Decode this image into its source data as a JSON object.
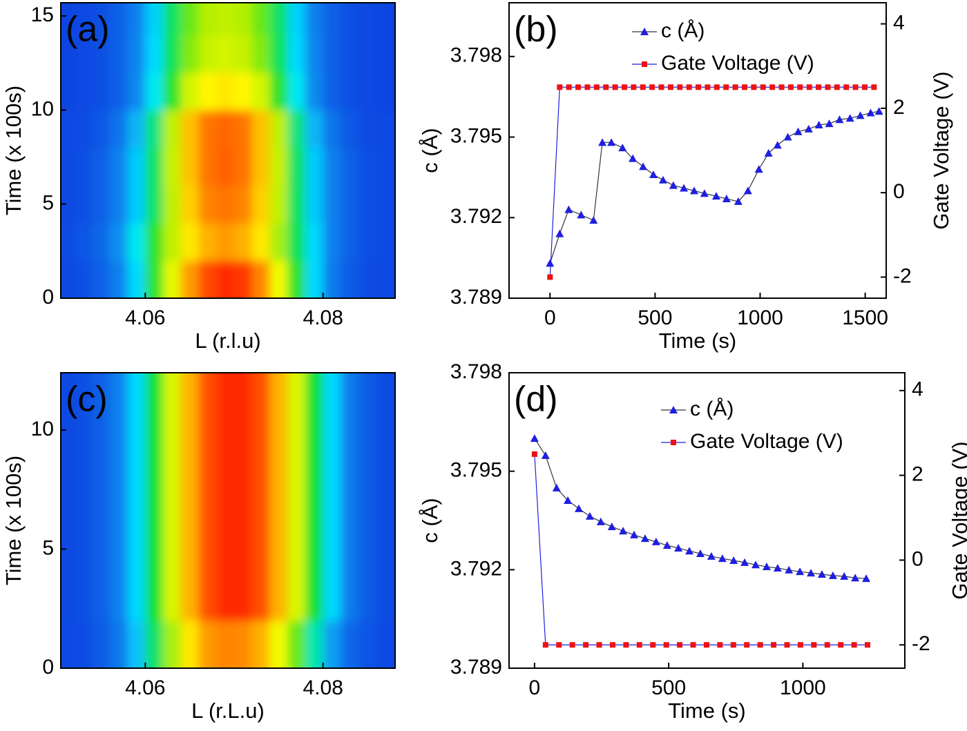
{
  "chart_data": [
    {
      "type": "heatmap",
      "panel_label": "(a)",
      "panel_label_color": "#ffffff",
      "xlabel": "L (r.l.u)",
      "ylabel": "Time (x 100s)",
      "xlim": [
        4.0505,
        4.0881
      ],
      "ylim": [
        0,
        15.7
      ],
      "xticks": [
        4.06,
        4.08
      ],
      "yticks": [
        0,
        5,
        10,
        15
      ],
      "x": [
        4.051,
        4.053,
        4.055,
        4.057,
        4.059,
        4.061,
        4.063,
        4.065,
        4.067,
        4.069,
        4.071,
        4.073,
        4.075,
        4.077,
        4.079,
        4.081,
        4.083,
        4.085,
        4.087
      ],
      "y": [
        1,
        3,
        5,
        7,
        9,
        11,
        13,
        15
      ],
      "z": [
        [
          0.02,
          0.04,
          0.08,
          0.16,
          0.3,
          0.5,
          0.68,
          0.85,
          0.96,
          1,
          0.98,
          0.88,
          0.7,
          0.5,
          0.3,
          0.15,
          0.07,
          0.03,
          0.02
        ],
        [
          0.03,
          0.05,
          0.1,
          0.2,
          0.33,
          0.5,
          0.62,
          0.75,
          0.82,
          0.85,
          0.82,
          0.75,
          0.6,
          0.45,
          0.3,
          0.16,
          0.08,
          0.04,
          0.02
        ],
        [
          0.02,
          0.04,
          0.08,
          0.16,
          0.28,
          0.44,
          0.62,
          0.78,
          0.88,
          0.9,
          0.88,
          0.78,
          0.62,
          0.44,
          0.28,
          0.16,
          0.08,
          0.04,
          0.02
        ],
        [
          0.02,
          0.04,
          0.08,
          0.16,
          0.28,
          0.44,
          0.63,
          0.8,
          0.9,
          0.93,
          0.9,
          0.8,
          0.63,
          0.44,
          0.28,
          0.16,
          0.08,
          0.04,
          0.02
        ],
        [
          0.02,
          0.03,
          0.06,
          0.13,
          0.25,
          0.42,
          0.62,
          0.8,
          0.9,
          0.92,
          0.9,
          0.8,
          0.62,
          0.42,
          0.25,
          0.13,
          0.06,
          0.03,
          0.02
        ],
        [
          0.01,
          0.02,
          0.04,
          0.08,
          0.18,
          0.33,
          0.5,
          0.65,
          0.73,
          0.75,
          0.73,
          0.65,
          0.5,
          0.33,
          0.18,
          0.08,
          0.04,
          0.02,
          0.01
        ],
        [
          0.01,
          0.02,
          0.04,
          0.08,
          0.17,
          0.3,
          0.45,
          0.57,
          0.63,
          0.65,
          0.63,
          0.57,
          0.45,
          0.3,
          0.17,
          0.08,
          0.04,
          0.02,
          0.01
        ],
        [
          0.01,
          0.02,
          0.04,
          0.08,
          0.16,
          0.29,
          0.44,
          0.55,
          0.61,
          0.62,
          0.61,
          0.55,
          0.44,
          0.29,
          0.16,
          0.08,
          0.04,
          0.02,
          0.01
        ]
      ]
    },
    {
      "type": "line",
      "panel_label": "(b)",
      "panel_label_color": "#000000",
      "xlabel": "Time (s)",
      "ylabel": "c (Å)",
      "y2label": "Gate Voltage (V)",
      "y2_color": "#ee1111",
      "xlim": [
        -195,
        1600
      ],
      "ylim": [
        3.789,
        3.8
      ],
      "y2lim": [
        -2.5,
        4.5
      ],
      "xticks": [
        0,
        500,
        1000,
        1500
      ],
      "yticks": [
        3.789,
        3.792,
        3.795,
        3.798
      ],
      "y2ticks": [
        -2,
        0,
        2,
        4
      ],
      "legend": "upper right",
      "series": [
        {
          "name": "c (Å)",
          "marker": "triangle",
          "color": "#1f1fe0",
          "line_color": "#333333",
          "text_color": "#000000",
          "x": [
            0,
            46,
            89,
            148,
            207,
            249,
            292,
            345,
            394,
            443,
            492,
            538,
            587,
            637,
            686,
            735,
            791,
            840,
            896,
            942,
            994,
            1040,
            1083,
            1132,
            1181,
            1231,
            1280,
            1329,
            1378,
            1428,
            1477,
            1526,
            1566
          ],
          "values": [
            3.7903,
            3.7914,
            3.7923,
            3.7921,
            3.7919,
            3.7948,
            3.7948,
            3.7946,
            3.7942,
            3.7939,
            3.7936,
            3.7934,
            3.7932,
            3.7931,
            3.793,
            3.7929,
            3.7928,
            3.7927,
            3.7926,
            3.793,
            3.7938,
            3.7944,
            3.7947,
            3.795,
            3.7952,
            3.7953,
            3.79545,
            3.7955,
            3.79565,
            3.7957,
            3.7958,
            3.7959,
            3.79596
          ]
        },
        {
          "name": "Gate Voltage (V)",
          "axis": "y2",
          "marker": "square",
          "color": "#ee1111",
          "line_color": "#1f1fe0",
          "text_color": "#ee1111",
          "x": [
            0,
            46,
            90,
            134,
            178,
            222,
            266,
            310,
            354,
            398,
            442,
            486,
            530,
            574,
            618,
            662,
            706,
            750,
            794,
            838,
            882,
            926,
            970,
            1014,
            1058,
            1102,
            1146,
            1190,
            1234,
            1278,
            1322,
            1366,
            1410,
            1454,
            1498,
            1542
          ],
          "values": [
            -2,
            2.5,
            2.5,
            2.5,
            2.5,
            2.5,
            2.5,
            2.5,
            2.5,
            2.5,
            2.5,
            2.5,
            2.5,
            2.5,
            2.5,
            2.5,
            2.5,
            2.5,
            2.5,
            2.5,
            2.5,
            2.5,
            2.5,
            2.5,
            2.5,
            2.5,
            2.5,
            2.5,
            2.5,
            2.5,
            2.5,
            2.5,
            2.5,
            2.5,
            2.5,
            2.5
          ]
        }
      ]
    },
    {
      "type": "heatmap",
      "panel_label": "(c)",
      "panel_label_color": "#ffffff",
      "xlabel": "L (r.L.u)",
      "ylabel": "Time (x 100s)",
      "xlim": [
        4.0505,
        4.0881
      ],
      "ylim": [
        0,
        12.4
      ],
      "xticks": [
        4.06,
        4.08
      ],
      "yticks": [
        0,
        5,
        10
      ],
      "x": [
        4.051,
        4.053,
        4.055,
        4.057,
        4.059,
        4.061,
        4.063,
        4.065,
        4.067,
        4.069,
        4.071,
        4.073,
        4.075,
        4.077,
        4.079,
        4.081,
        4.083,
        4.085,
        4.087
      ],
      "y": [
        1,
        3,
        5,
        7,
        9,
        11,
        13
      ],
      "z": [
        [
          0.02,
          0.03,
          0.07,
          0.14,
          0.27,
          0.44,
          0.6,
          0.75,
          0.85,
          0.88,
          0.87,
          0.82,
          0.7,
          0.55,
          0.38,
          0.22,
          0.1,
          0.05,
          0.02
        ],
        [
          0.02,
          0.04,
          0.08,
          0.16,
          0.3,
          0.48,
          0.66,
          0.82,
          0.95,
          1,
          1,
          0.95,
          0.82,
          0.66,
          0.48,
          0.3,
          0.15,
          0.07,
          0.03
        ],
        [
          0.02,
          0.04,
          0.08,
          0.16,
          0.3,
          0.48,
          0.66,
          0.82,
          0.95,
          1,
          1,
          0.95,
          0.82,
          0.66,
          0.48,
          0.3,
          0.15,
          0.07,
          0.03
        ],
        [
          0.02,
          0.04,
          0.08,
          0.16,
          0.3,
          0.48,
          0.66,
          0.82,
          0.95,
          1,
          1,
          0.95,
          0.82,
          0.66,
          0.48,
          0.3,
          0.15,
          0.07,
          0.03
        ],
        [
          0.02,
          0.04,
          0.08,
          0.16,
          0.3,
          0.48,
          0.66,
          0.82,
          0.95,
          1,
          1,
          0.95,
          0.82,
          0.66,
          0.48,
          0.3,
          0.15,
          0.07,
          0.03
        ],
        [
          0.02,
          0.04,
          0.08,
          0.16,
          0.3,
          0.48,
          0.66,
          0.82,
          0.95,
          1,
          1,
          0.95,
          0.82,
          0.66,
          0.48,
          0.3,
          0.15,
          0.07,
          0.03
        ],
        [
          0.02,
          0.04,
          0.08,
          0.16,
          0.3,
          0.48,
          0.66,
          0.82,
          0.95,
          1,
          1,
          0.95,
          0.82,
          0.66,
          0.48,
          0.3,
          0.15,
          0.07,
          0.03
        ]
      ]
    },
    {
      "type": "line",
      "panel_label": "(d)",
      "panel_label_color": "#000000",
      "xlabel": "Time (s)",
      "ylabel": "c (Å)",
      "y2label": "Gate Voltage (V)",
      "y2_color": "#ee1111",
      "xlim": [
        -95,
        1380
      ],
      "ylim": [
        3.789,
        3.798
      ],
      "y2lim": [
        -2.55,
        4.42
      ],
      "xticks": [
        0,
        500,
        1000
      ],
      "yticks": [
        3.789,
        3.792,
        3.795,
        3.798
      ],
      "y2ticks": [
        -2,
        0,
        2,
        4
      ],
      "legend": "right",
      "series": [
        {
          "name": "c (Å)",
          "marker": "triangle",
          "color": "#1f1fe0",
          "line_color": "#333333",
          "text_color": "#000000",
          "x": [
            0,
            41,
            82,
            124,
            165,
            206,
            247,
            288,
            330,
            371,
            412,
            453,
            494,
            536,
            577,
            618,
            659,
            700,
            742,
            783,
            824,
            865,
            906,
            948,
            989,
            1030,
            1071,
            1112,
            1154,
            1195,
            1236
          ],
          "values": [
            3.796,
            3.79548,
            3.79449,
            3.79411,
            3.79386,
            3.79363,
            3.79346,
            3.79331,
            3.79318,
            3.79306,
            3.79295,
            3.79285,
            3.79274,
            3.79266,
            3.79257,
            3.79249,
            3.79241,
            3.79234,
            3.79228,
            3.79222,
            3.79215,
            3.79209,
            3.79205,
            3.79199,
            3.79194,
            3.7919,
            3.79186,
            3.79182,
            3.7918,
            3.79175,
            3.79173
          ]
        },
        {
          "name": "Gate Voltage (V)",
          "axis": "y2",
          "marker": "square",
          "color": "#ee1111",
          "line_color": "#1f1fe0",
          "text_color": "#ee1111",
          "x": [
            0,
            41,
            91,
            141,
            191,
            241,
            291,
            341,
            391,
            441,
            491,
            541,
            591,
            641,
            691,
            741,
            791,
            841,
            891,
            941,
            991,
            1041,
            1091,
            1141,
            1191,
            1241
          ],
          "values": [
            2.5,
            -2,
            -2,
            -2,
            -2,
            -2,
            -2,
            -2,
            -2,
            -2,
            -2,
            -2,
            -2,
            -2,
            -2,
            -2,
            -2,
            -2,
            -2,
            -2,
            -2,
            -2,
            -2,
            -2,
            -2,
            -2
          ]
        }
      ]
    }
  ]
}
